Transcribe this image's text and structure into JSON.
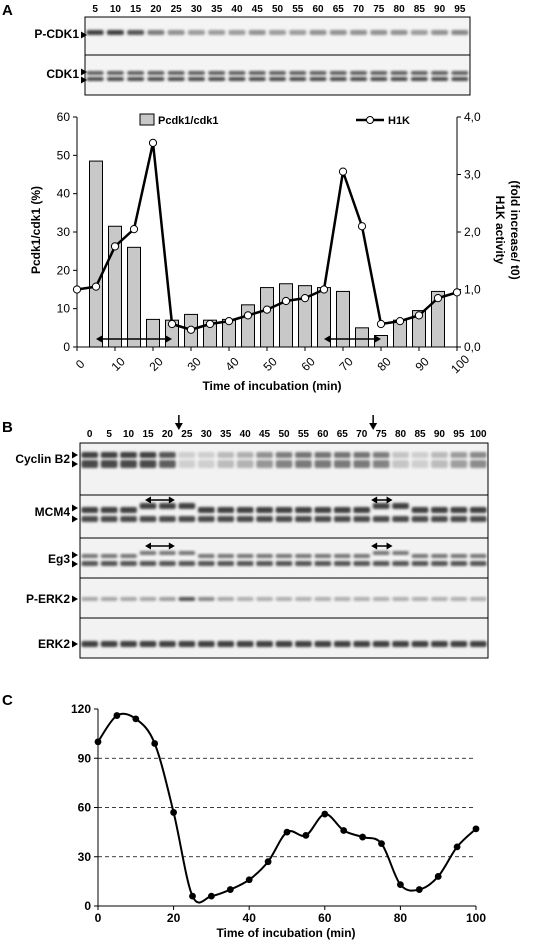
{
  "panelA": {
    "letter": "A",
    "blot_times": [
      "5",
      "10",
      "15",
      "20",
      "25",
      "30",
      "35",
      "40",
      "45",
      "50",
      "55",
      "60",
      "65",
      "70",
      "75",
      "80",
      "85",
      "90",
      "95"
    ],
    "blot_labels": [
      "P-CDK1",
      "CDK1"
    ],
    "pcdk1_intensity": [
      0.85,
      0.85,
      0.75,
      0.55,
      0.45,
      0.4,
      0.4,
      0.4,
      0.45,
      0.4,
      0.4,
      0.45,
      0.45,
      0.45,
      0.45,
      0.45,
      0.4,
      0.45,
      0.5
    ]
  },
  "panelB": {
    "letter": "B",
    "times": [
      "0",
      "5",
      "10",
      "15",
      "20",
      "25",
      "30",
      "35",
      "40",
      "45",
      "50",
      "55",
      "60",
      "65",
      "70",
      "75",
      "80",
      "85",
      "90",
      "95",
      "100"
    ],
    "blot_labels": [
      "Cyclin B2",
      "MCM4",
      "Eg3",
      "P-ERK2",
      "ERK2"
    ],
    "cyclin_intensity": [
      0.85,
      0.85,
      0.85,
      0.85,
      0.75,
      0.15,
      0.15,
      0.25,
      0.3,
      0.45,
      0.55,
      0.6,
      0.6,
      0.6,
      0.6,
      0.55,
      0.2,
      0.15,
      0.25,
      0.4,
      0.5
    ],
    "perk_intensity": [
      0.35,
      0.35,
      0.35,
      0.35,
      0.4,
      0.75,
      0.5,
      0.35,
      0.3,
      0.3,
      0.3,
      0.3,
      0.3,
      0.3,
      0.3,
      0.3,
      0.3,
      0.3,
      0.3,
      0.3,
      0.3
    ]
  },
  "panelC": {
    "letter": "C"
  },
  "chart_data": [
    {
      "type": "bar",
      "panel": "A",
      "xlabel": "Time of incubation (min)",
      "ylabel": "Pcdk1/cdk1 (%)",
      "y2label_line1": "H1K activity",
      "y2label_line2": "(fold increase/ t0)",
      "ylim": [
        0,
        60
      ],
      "y2lim": [
        0,
        4
      ],
      "yticks": [
        0,
        10,
        20,
        30,
        40,
        50,
        60
      ],
      "y2ticks": [
        "0,0",
        "1,0",
        "2,0",
        "3,0",
        "4,0"
      ],
      "xlim": [
        0,
        100
      ],
      "xticks": [
        "0",
        "10",
        "20",
        "30",
        "40",
        "50",
        "60",
        "70",
        "80",
        "90",
        "100"
      ],
      "legend": [
        "Pcdk1/cdk1",
        "H1K"
      ],
      "series": [
        {
          "name": "Pcdk1/cdk1",
          "type": "bar",
          "x": [
            5,
            10,
            15,
            20,
            25,
            30,
            35,
            40,
            45,
            50,
            55,
            60,
            65,
            70,
            75,
            80,
            85,
            90,
            95
          ],
          "values": [
            48.5,
            31.5,
            26,
            7.2,
            7,
            8.5,
            7,
            7.2,
            11,
            15.5,
            16.5,
            16,
            15.5,
            14.5,
            5,
            3,
            7,
            9.5,
            14.5
          ]
        },
        {
          "name": "H1K",
          "type": "line",
          "x": [
            0,
            5,
            10,
            15,
            20,
            25,
            30,
            35,
            40,
            45,
            50,
            55,
            60,
            65,
            70,
            75,
            80,
            85,
            90,
            95,
            100
          ],
          "values": [
            1.0,
            1.05,
            1.75,
            2.05,
            3.55,
            0.4,
            0.3,
            0.4,
            0.45,
            0.55,
            0.65,
            0.8,
            0.85,
            1.0,
            3.05,
            2.1,
            0.4,
            0.45,
            0.55,
            0.85,
            0.95
          ]
        }
      ],
      "arrows": [
        [
          5,
          25
        ],
        [
          65,
          80
        ]
      ]
    },
    {
      "type": "line",
      "panel": "C",
      "xlabel": "Time of incubation (min)",
      "ylabel": "",
      "xlim": [
        0,
        100
      ],
      "ylim": [
        0,
        120
      ],
      "xticks": [
        "0",
        "20",
        "40",
        "60",
        "80",
        "100"
      ],
      "yticks": [
        "0",
        "30",
        "60",
        "90",
        "120"
      ],
      "grid": "horizontal dashed at 30, 60, 90",
      "series": [
        {
          "x": [
            0,
            5,
            10,
            15,
            20,
            25,
            30,
            35,
            40,
            45,
            50,
            55,
            60,
            65,
            70,
            75,
            80,
            85,
            90,
            95,
            100
          ],
          "values": [
            100,
            116,
            114,
            99,
            57,
            6,
            6,
            10,
            16,
            27,
            45,
            43,
            56,
            46,
            42,
            38,
            13,
            10,
            18,
            36,
            47
          ]
        }
      ]
    }
  ]
}
